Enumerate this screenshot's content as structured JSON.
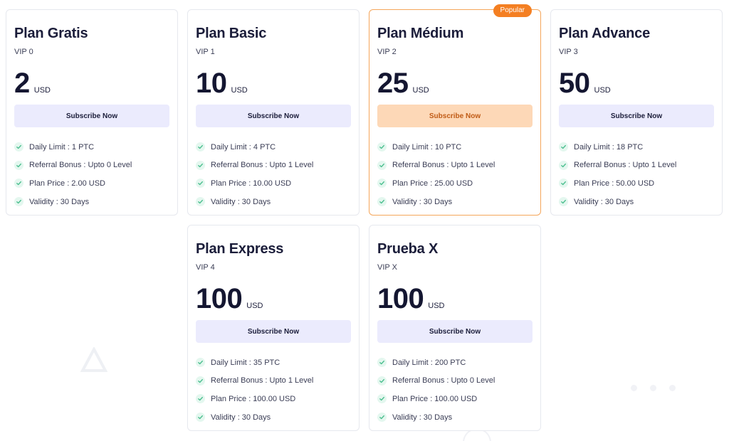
{
  "colors": {
    "accent": "#f47f22",
    "button_bg": "#ebebfd",
    "popular_button_bg": "#fdd8b7",
    "check": "#5fc9a0"
  },
  "plans": [
    {
      "name": "Plan Gratis",
      "vip": "VIP 0",
      "price": "2",
      "currency": "USD",
      "button_label": "Subscribe Now",
      "features": [
        "Daily Limit : 1 PTC",
        "Referral Bonus : Upto 0 Level",
        "Plan Price : 2.00 USD",
        "Validity : 30 Days"
      ]
    },
    {
      "name": "Plan Basic",
      "vip": "VIP 1",
      "price": "10",
      "currency": "USD",
      "button_label": "Subscribe Now",
      "features": [
        "Daily Limit : 4 PTC",
        "Referral Bonus : Upto 1 Level",
        "Plan Price : 10.00 USD",
        "Validity : 30 Days"
      ]
    },
    {
      "name": "Plan Médium",
      "vip": "VIP 2",
      "price": "25",
      "currency": "USD",
      "button_label": "Subscribe Now",
      "badge": "Popular",
      "features": [
        "Daily Limit : 10 PTC",
        "Referral Bonus : Upto 1 Level",
        "Plan Price : 25.00 USD",
        "Validity : 30 Days"
      ]
    },
    {
      "name": "Plan Advance",
      "vip": "VIP 3",
      "price": "50",
      "currency": "USD",
      "button_label": "Subscribe Now",
      "features": [
        "Daily Limit : 18 PTC",
        "Referral Bonus : Upto 1 Level",
        "Plan Price : 50.00 USD",
        "Validity : 30 Days"
      ]
    },
    {
      "name": "Plan Express",
      "vip": "VIP 4",
      "price": "100",
      "currency": "USD",
      "button_label": "Subscribe Now",
      "features": [
        "Daily Limit : 35 PTC",
        "Referral Bonus : Upto 1 Level",
        "Plan Price : 100.00 USD",
        "Validity : 30 Days"
      ]
    },
    {
      "name": "Prueba X",
      "vip": "VIP X",
      "price": "100",
      "currency": "USD",
      "button_label": "Subscribe Now",
      "features": [
        "Daily Limit : 200 PTC",
        "Referral Bonus : Upto 0 Level",
        "Plan Price : 100.00 USD",
        "Validity : 30 Days"
      ]
    }
  ]
}
